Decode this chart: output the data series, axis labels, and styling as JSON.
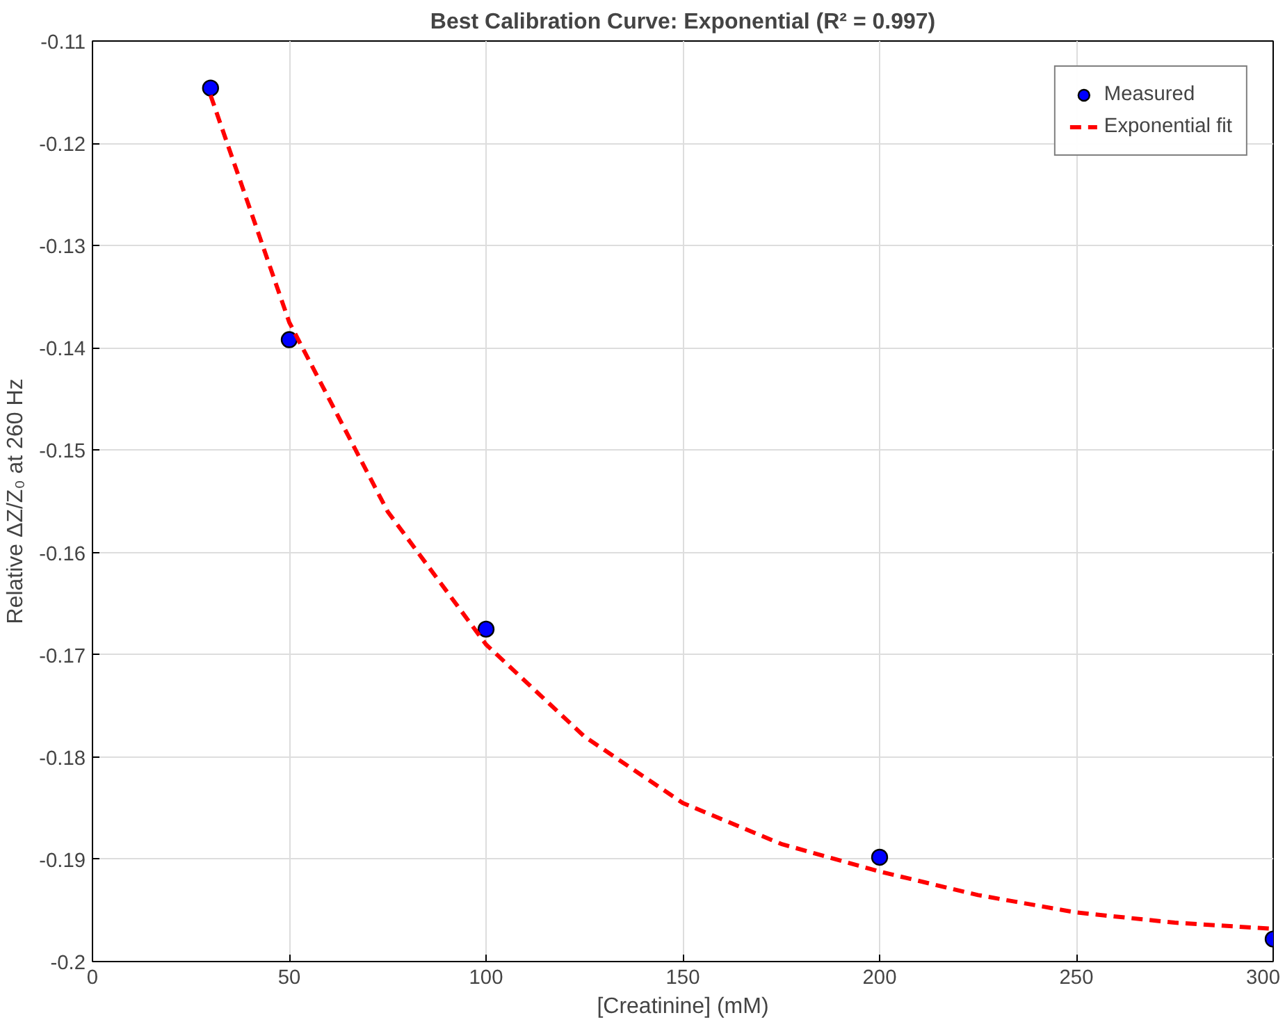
{
  "chart_data": {
    "type": "scatter",
    "title": "Best Calibration Curve: Exponential (R² = 0.997)",
    "xlabel": "[Creatinine] (mM)",
    "ylabel": "Relative ΔZ/Z₀ at 260 Hz",
    "xlim": [
      0,
      300
    ],
    "xticks": [
      0,
      50,
      100,
      150,
      200,
      250,
      300
    ],
    "ylim": [
      -0.2,
      -0.11
    ],
    "yticks": [
      -0.2,
      -0.19,
      -0.18,
      -0.17,
      -0.16,
      -0.15,
      -0.14,
      -0.13,
      -0.12,
      -0.11
    ],
    "grid": true,
    "legend": "top right",
    "series": [
      {
        "name": "Measured",
        "marker": "circle",
        "color": "#0000ff",
        "x": [
          30,
          50,
          100,
          200,
          300
        ],
        "values": [
          -0.1146,
          -0.1392,
          -0.1675,
          -0.1898,
          -0.1978
        ]
      },
      {
        "name": "Exponential fit",
        "type": "line",
        "line_style": "dashed",
        "color": "#ff0000",
        "x": [
          30,
          50,
          75,
          100,
          125,
          150,
          175,
          200,
          225,
          250,
          275,
          300
        ],
        "values": [
          -0.1153,
          -0.1375,
          -0.156,
          -0.169,
          -0.178,
          -0.1845,
          -0.1885,
          -0.1912,
          -0.1935,
          -0.1952,
          -0.1962,
          -0.1968
        ]
      }
    ]
  }
}
